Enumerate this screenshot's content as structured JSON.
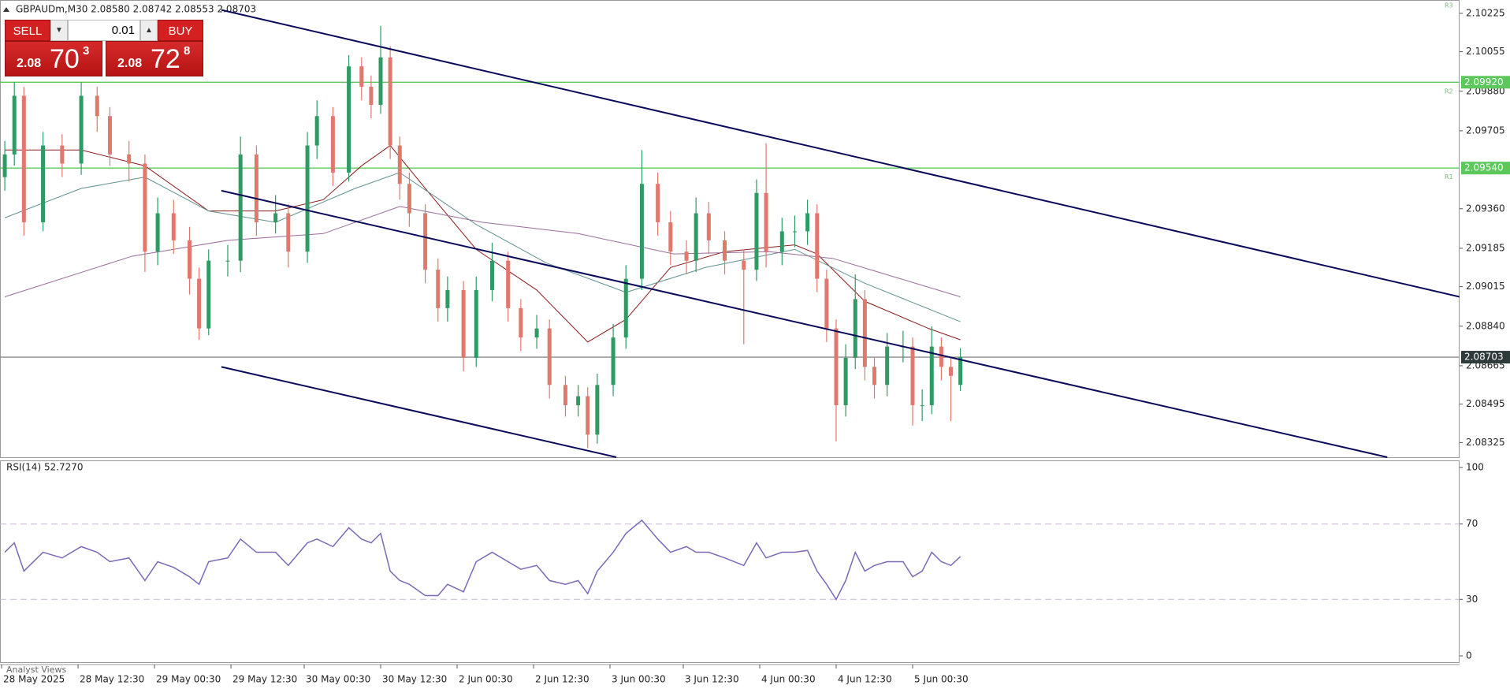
{
  "chart_data": {
    "type": "candlestick",
    "title": "GBPAUDm,M30  2.08580 2.08742 2.08553 2.08703",
    "x": [
      0,
      3,
      6,
      12,
      18,
      24,
      29,
      33,
      39,
      44,
      48,
      53,
      58,
      61,
      64,
      70,
      74,
      79,
      85,
      89,
      95,
      98,
      103,
      108,
      112,
      115,
      118,
      121,
      124,
      127,
      132,
      136,
      139,
      144,
      148,
      153,
      158,
      162,
      167,
      171,
      176,
      180,
      183,
      186,
      191,
      195,
      200,
      205,
      209,
      214,
      217,
      221,
      226,
      232,
      236,
      239,
      244,
      248,
      252,
      255,
      258,
      261,
      264,
      267,
      270,
      273,
      277,
      282,
      285,
      288,
      291,
      294,
      297,
      300
    ],
    "open": [
      2.095,
      2.096,
      2.0986,
      2.093,
      2.0964,
      2.0956,
      2.0986,
      2.0977,
      2.096,
      2.0956,
      2.0917,
      2.0934,
      2.0922,
      2.0905,
      2.0883,
      2.0913,
      2.0913,
      2.096,
      2.093,
      2.0934,
      2.0917,
      2.0964,
      2.0977,
      2.0952,
      2.0999,
      2.099,
      2.0982,
      2.1003,
      2.0964,
      2.0947,
      2.0934,
      2.0909,
      2.0892,
      2.09,
      2.087,
      2.09,
      2.0913,
      2.0892,
      2.0879,
      2.0883,
      2.0858,
      2.0849,
      2.0853,
      2.0836,
      2.0858,
      2.0879,
      2.0905,
      2.0947,
      2.093,
      2.0917,
      2.0913,
      2.0934,
      2.0922,
      2.0913,
      2.0909,
      2.0943,
      2.0917,
      2.0926,
      2.0926,
      2.0934,
      2.0905,
      2.0883,
      2.0849,
      2.087,
      2.0896,
      2.0866,
      2.0858,
      2.0875,
      2.0875,
      2.0849,
      2.0849,
      2.0875,
      2.0866,
      2.0858
    ],
    "high": [
      2.0966,
      2.0992,
      2.099,
      2.097,
      2.0969,
      2.0992,
      2.099,
      2.0981,
      2.0966,
      2.096,
      2.0941,
      2.094,
      2.0928,
      2.091,
      2.0918,
      2.092,
      2.0968,
      2.0964,
      2.0942,
      2.0938,
      2.097,
      2.0984,
      2.0981,
      2.1004,
      2.1003,
      2.0995,
      2.1017,
      2.1008,
      2.0968,
      2.0952,
      2.0938,
      2.0914,
      2.0906,
      2.0904,
      2.0906,
      2.0921,
      2.0917,
      2.0896,
      2.0889,
      2.0887,
      2.0862,
      2.0858,
      2.0857,
      2.0863,
      2.0885,
      2.0911,
      2.0962,
      2.0952,
      2.0935,
      2.0922,
      2.0941,
      2.0939,
      2.0926,
      2.0918,
      2.0949,
      2.0965,
      2.0932,
      2.0933,
      2.094,
      2.0938,
      2.0909,
      2.0887,
      2.0876,
      2.0907,
      2.09,
      2.087,
      2.0881,
      2.0882,
      2.0879,
      2.0856,
      2.0884,
      2.0879,
      2.087,
      2.08742
    ],
    "low": [
      2.0944,
      2.0955,
      2.0924,
      2.0926,
      2.095,
      2.0951,
      2.097,
      2.0955,
      2.0948,
      2.0908,
      2.0911,
      2.0916,
      2.0898,
      2.0878,
      2.088,
      2.0906,
      2.0908,
      2.0924,
      2.0925,
      2.091,
      2.0912,
      2.0958,
      2.0946,
      2.0948,
      2.0984,
      2.0976,
      2.0978,
      2.0958,
      2.094,
      2.0928,
      2.0903,
      2.0886,
      2.0886,
      2.0864,
      2.0866,
      2.0895,
      2.0886,
      2.0873,
      2.0874,
      2.0852,
      2.0844,
      2.0844,
      2.083,
      2.0832,
      2.0853,
      2.0874,
      2.09,
      2.0924,
      2.0911,
      2.0907,
      2.0908,
      2.0916,
      2.0907,
      2.0876,
      2.0904,
      2.091,
      2.0911,
      2.0919,
      2.092,
      2.0899,
      2.0877,
      2.0833,
      2.0844,
      2.0865,
      2.086,
      2.0852,
      2.0853,
      2.0868,
      2.084,
      2.0842,
      2.0845,
      2.086,
      2.0842,
      2.08553
    ],
    "close": [
      2.096,
      2.0986,
      2.093,
      2.0964,
      2.0956,
      2.0986,
      2.0977,
      2.096,
      2.0956,
      2.0917,
      2.0934,
      2.0922,
      2.0905,
      2.0883,
      2.0913,
      2.0913,
      2.096,
      2.093,
      2.0934,
      2.0917,
      2.0964,
      2.0977,
      2.0952,
      2.0999,
      2.099,
      2.0982,
      2.1003,
      2.0964,
      2.0947,
      2.0934,
      2.0909,
      2.0892,
      2.09,
      2.087,
      2.09,
      2.0913,
      2.0892,
      2.0879,
      2.0883,
      2.0858,
      2.0849,
      2.0853,
      2.0836,
      2.0858,
      2.0879,
      2.0905,
      2.0947,
      2.093,
      2.0917,
      2.0913,
      2.0934,
      2.0922,
      2.0913,
      2.0909,
      2.0943,
      2.0917,
      2.0926,
      2.0926,
      2.0934,
      2.0905,
      2.0883,
      2.0849,
      2.087,
      2.0896,
      2.0866,
      2.0858,
      2.0875,
      2.0875,
      2.0849,
      2.0849,
      2.0875,
      2.0866,
      2.0862,
      2.08703
    ],
    "up_color": "#2f9a63",
    "down_color": "#e0786d",
    "xlim": [
      -1.5,
      456.7
    ],
    "xticks": [
      {
        "value": -1,
        "label": "28 May 2025"
      },
      {
        "value": 23,
        "label": "28 May 12:30"
      },
      {
        "value": 47,
        "label": "29 May 00:30"
      },
      {
        "value": 71,
        "label": "29 May 12:30"
      },
      {
        "value": 94,
        "label": "30 May 00:30"
      },
      {
        "value": 118,
        "label": "30 May 12:30"
      },
      {
        "value": 142,
        "label": "2 Jun 00:30"
      },
      {
        "value": 166,
        "label": "2 Jun 12:30"
      },
      {
        "value": 190,
        "label": "3 Jun 00:30"
      },
      {
        "value": 213,
        "label": "3 Jun 12:30"
      },
      {
        "value": 237,
        "label": "4 Jun 00:30"
      },
      {
        "value": 261,
        "label": "4 Jun 12:30"
      },
      {
        "value": 285,
        "label": "5 Jun 00:30"
      }
    ],
    "ylim": [
      2.0826,
      2.1027
    ],
    "yticks": [
      2.10225,
      2.10055,
      {
        "value": 2.0988,
        "label": "2.09880"
      },
      2.09705,
      {
        "value": 2.0936,
        "label": "2.09360"
      },
      2.09185,
      2.09015,
      {
        "value": 2.0884,
        "label": "2.08840"
      },
      2.08665,
      2.08495,
      2.08325
    ],
    "moving_averages": [
      {
        "color": "#8b1a1a",
        "x": [
          0,
          24,
          44,
          64,
          85,
          100,
          112,
          121,
          132,
          148,
          167,
          183,
          195,
          209,
          226,
          248,
          255,
          270,
          290,
          300
        ],
        "values": [
          2.0962,
          2.0962,
          2.0955,
          2.0935,
          2.0935,
          2.094,
          2.0955,
          2.0964,
          2.0945,
          2.0918,
          2.09,
          2.0877,
          2.0887,
          2.091,
          2.0917,
          2.092,
          2.0916,
          2.0895,
          2.0883,
          2.0878
        ]
      },
      {
        "color": "#5f9090",
        "x": [
          0,
          24,
          44,
          64,
          85,
          110,
          124,
          148,
          170,
          195,
          220,
          248,
          270,
          300
        ],
        "values": [
          2.0932,
          2.0945,
          2.095,
          2.0935,
          2.093,
          2.0945,
          2.0952,
          2.0929,
          2.0912,
          2.0899,
          2.091,
          2.0918,
          2.0903,
          2.0886
        ]
      },
      {
        "color": "#9a6a9a",
        "x": [
          0,
          40,
          70,
          100,
          124,
          150,
          180,
          210,
          240,
          260,
          300
        ],
        "values": [
          2.0897,
          2.0915,
          2.0922,
          2.0925,
          2.0937,
          2.093,
          2.0925,
          2.0916,
          2.0917,
          2.0914,
          2.0897
        ]
      }
    ],
    "trendlines": [
      {
        "color": "#0a0a5a",
        "x": [
          68,
          456.7
        ],
        "y": [
          2.1024,
          2.0897
        ]
      },
      {
        "color": "#0a0a5a",
        "x": [
          68,
          434
        ],
        "y": [
          2.0944,
          2.0826
        ]
      },
      {
        "color": "#0a0a5a",
        "x": [
          68,
          192
        ],
        "y": [
          2.0866,
          2.0826
        ]
      }
    ],
    "hlines": [
      {
        "value": 2.0992,
        "label": "2.09920",
        "color": "#5cc85c"
      },
      {
        "value": 2.0954,
        "label": "2.09540",
        "color": "#5cc85c"
      },
      {
        "value": 2.08703,
        "color": "#8a8a8a"
      }
    ],
    "annotations": [
      {
        "text": "R3",
        "y": 2.1026
      },
      {
        "text": "R2",
        "y": 2.0988
      },
      {
        "text": "R1",
        "y": 2.095
      }
    ],
    "indicator": {
      "label": "RSI(14) 52.7270",
      "color": "#7c68b6",
      "values": [
        55,
        60,
        45,
        55,
        52,
        58,
        55,
        50,
        52,
        40,
        50,
        47,
        42,
        38,
        50,
        52,
        62,
        55,
        55,
        48,
        60,
        62,
        58,
        68,
        62,
        60,
        65,
        45,
        40,
        38,
        32,
        32,
        38,
        34,
        50,
        55,
        50,
        46,
        48,
        40,
        38,
        40,
        33,
        45,
        55,
        65,
        72,
        62,
        55,
        58,
        55,
        55,
        52,
        48,
        60,
        52,
        55,
        55,
        56,
        45,
        38,
        30,
        40,
        55,
        45,
        48,
        50,
        50,
        42,
        45,
        55,
        50,
        48,
        52.727
      ],
      "ylim": [
        0,
        100
      ],
      "yticks": [
        100,
        70,
        30,
        0
      ],
      "levels": [
        70,
        30
      ]
    }
  },
  "trade_panel": {
    "sell": "SELL",
    "buy": "BUY",
    "volume": "0.01",
    "bid": {
      "big": "2.08",
      "main": "70",
      "small": "3"
    },
    "ask": {
      "big": "2.08",
      "main": "72",
      "small": "8"
    }
  },
  "footer": {
    "analyst_views": "Analyst Views"
  }
}
